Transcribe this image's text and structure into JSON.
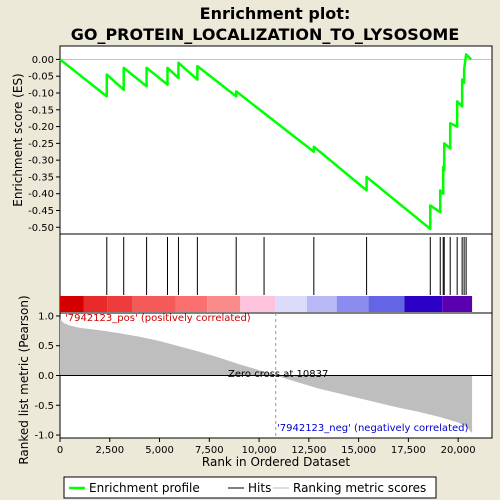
{
  "chart_data": {
    "type": "line",
    "title": "Enrichment plot:\nGO_PROTEIN_LOCALIZATION_TO_LYSOSOME",
    "title_lines": [
      "Enrichment plot:",
      "GO_PROTEIN_LOCALIZATION_TO_LYSOSOME"
    ],
    "es_panel": {
      "ylabel": "Enrichment score (ES)",
      "ylim": [
        -0.52,
        0.04
      ],
      "yticks": [
        "0.00",
        "-0.05",
        "-0.10",
        "-0.15",
        "-0.20",
        "-0.25",
        "-0.30",
        "-0.35",
        "-0.40",
        "-0.45",
        "-0.50"
      ],
      "ytick_values": [
        0.0,
        -0.05,
        -0.1,
        -0.15,
        -0.2,
        -0.25,
        -0.3,
        -0.35,
        -0.4,
        -0.45,
        -0.5
      ],
      "series": {
        "name": "Enrichment profile",
        "color": "#00ff00",
        "x": [
          0,
          2350,
          2350,
          3200,
          3200,
          4350,
          4350,
          5400,
          5400,
          5950,
          5950,
          6900,
          6900,
          8850,
          8850,
          10250,
          12750,
          12750,
          15400,
          15400,
          18600,
          18600,
          19100,
          19100,
          19250,
          19250,
          19300,
          19300,
          19600,
          19600,
          19950,
          19950,
          20200,
          20200,
          20300,
          20300,
          20400,
          20650
        ],
        "y": [
          0.0,
          -0.11,
          -0.045,
          -0.09,
          -0.025,
          -0.08,
          -0.025,
          -0.075,
          -0.025,
          -0.055,
          -0.01,
          -0.06,
          -0.02,
          -0.11,
          -0.095,
          -0.16,
          -0.275,
          -0.26,
          -0.39,
          -0.35,
          -0.505,
          -0.435,
          -0.455,
          -0.39,
          -0.4,
          -0.32,
          -0.33,
          -0.25,
          -0.265,
          -0.19,
          -0.2,
          -0.125,
          -0.14,
          -0.06,
          -0.07,
          -0.03,
          0.015,
          0.0
        ]
      }
    },
    "hits": {
      "name": "Hits",
      "positions": [
        2350,
        3200,
        4350,
        5400,
        5950,
        6900,
        8850,
        10250,
        12750,
        15400,
        18600,
        19100,
        19250,
        19300,
        19600,
        19950,
        20200,
        20300,
        20400
      ]
    },
    "heat_strip": {
      "segments": [
        {
          "x0": 0,
          "x1": 1200,
          "color": "#d40000"
        },
        {
          "x0": 1200,
          "x1": 2400,
          "color": "#e82a2a"
        },
        {
          "x0": 2400,
          "x1": 3650,
          "color": "#ee3c3c"
        },
        {
          "x0": 3650,
          "x1": 5800,
          "color": "#f55a5a"
        },
        {
          "x0": 5800,
          "x1": 7400,
          "color": "#fa7070"
        },
        {
          "x0": 7400,
          "x1": 9050,
          "color": "#fb8b8b"
        },
        {
          "x0": 9050,
          "x1": 10837,
          "color": "#fdc2dc"
        },
        {
          "x0": 10837,
          "x1": 12400,
          "color": "#dcdcfa"
        },
        {
          "x0": 12400,
          "x1": 13900,
          "color": "#b9b9f5"
        },
        {
          "x0": 13900,
          "x1": 15500,
          "color": "#8c8cf0"
        },
        {
          "x0": 15500,
          "x1": 17300,
          "color": "#6464e6"
        },
        {
          "x0": 17300,
          "x1": 19200,
          "color": "#2d00c8"
        },
        {
          "x0": 19200,
          "x1": 20700,
          "color": "#5a00b0"
        }
      ]
    },
    "ranked_panel": {
      "ylabel": "Ranked list metric (Pearson)",
      "xlabel": "Rank in Ordered Dataset",
      "ylim": [
        -1.05,
        1.05
      ],
      "yticks": [
        "1.0",
        "0.5",
        "0.0",
        "-0.5",
        "-1.0"
      ],
      "ytick_values": [
        1.0,
        0.5,
        0.0,
        -0.5,
        -1.0
      ],
      "xlim": [
        0,
        21700
      ],
      "xticks": [
        "0",
        "2,500",
        "5,000",
        "7,500",
        "10,000",
        "12,500",
        "15,000",
        "17,500",
        "20,000"
      ],
      "xtick_values": [
        0,
        2500,
        5000,
        7500,
        10000,
        12500,
        15000,
        17500,
        20000
      ],
      "metric_x": [
        0,
        200,
        500,
        1000,
        2000,
        3000,
        4000,
        5000,
        6000,
        7000,
        8000,
        9000,
        10000,
        10837,
        12000,
        13000,
        14000,
        15000,
        16000,
        17000,
        18000,
        19000,
        19500,
        20000,
        20300,
        20500,
        20650,
        20700
      ],
      "metric_y": [
        0.95,
        0.88,
        0.84,
        0.8,
        0.76,
        0.71,
        0.65,
        0.58,
        0.49,
        0.4,
        0.3,
        0.19,
        0.09,
        0.0,
        -0.12,
        -0.22,
        -0.3,
        -0.38,
        -0.46,
        -0.54,
        -0.61,
        -0.69,
        -0.74,
        -0.79,
        -0.84,
        -0.89,
        -0.95,
        -0.96
      ],
      "fill_color": "#bebebe",
      "zero_cross_label": "Zero cross at 10837",
      "zero_cross": 10837,
      "pos_label": "'7942123_pos' (positively correlated)",
      "neg_label": "'7942123_neg' (negatively correlated)",
      "pos_color": "#cc0000",
      "neg_color": "#0000cc"
    },
    "legend": {
      "placement": "bottom",
      "entries": [
        {
          "label": "Enrichment profile",
          "color": "#00ff00"
        },
        {
          "label": "Hits",
          "color": "#000000"
        },
        {
          "label": "Ranking metric scores",
          "color": "#bebebe"
        }
      ]
    }
  }
}
